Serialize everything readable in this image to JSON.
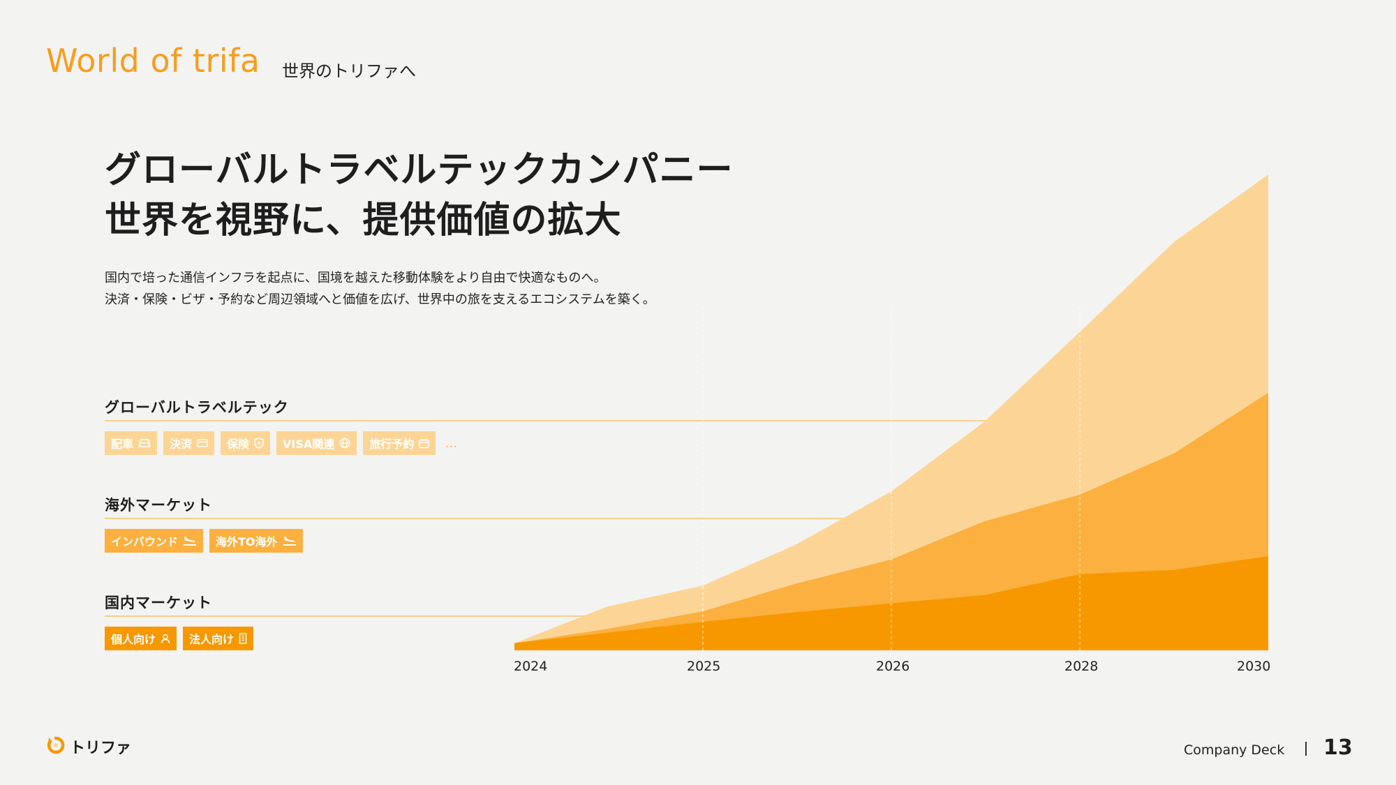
{
  "header": {
    "title_en": "World of trifa",
    "title_jp": "世界のトリファへ"
  },
  "headline": {
    "line1": "グローバルトラベルテックカンパニー",
    "line2": "世界を視野に、提供価値の拡大"
  },
  "description": {
    "line1": "国内で培った通信インフラを起点に、国境を越えた移動体験をより自由で快適なものへ。",
    "line2": "決済・保険・ビザ・予約など周辺領域へと価値を広げ、世界中の旅を支えるエコシステムを築く。"
  },
  "sections": {
    "global": {
      "title": "グローバルトラベルテック",
      "chips": [
        {
          "label": "配車",
          "icon": "car-icon"
        },
        {
          "label": "決済",
          "icon": "card-icon"
        },
        {
          "label": "保険",
          "icon": "shield-icon"
        },
        {
          "label": "VISA関連",
          "icon": "globe-icon"
        },
        {
          "label": "旅行予約",
          "icon": "calendar-icon"
        }
      ],
      "more": "…"
    },
    "overseas": {
      "title": "海外マーケット",
      "chips": [
        {
          "label": "インバウンド",
          "icon": "plane-landing-icon"
        },
        {
          "label": "海外TO海外",
          "icon": "plane-landing-icon"
        }
      ]
    },
    "domestic": {
      "title": "国内マーケット",
      "chips": [
        {
          "label": "個人向け",
          "icon": "person-icon"
        },
        {
          "label": "法人向け",
          "icon": "building-icon"
        }
      ]
    }
  },
  "chart_data": {
    "type": "area",
    "title": "",
    "xlabel": "",
    "ylabel": "",
    "x_ticks": [
      "2024",
      "2025",
      "2026",
      "2028",
      "2030"
    ],
    "x_tick_positions": [
      0,
      1,
      2,
      3,
      4
    ],
    "x": [
      0,
      0.5,
      1,
      1.5,
      2,
      2.5,
      3,
      3.5,
      4
    ],
    "ylim": [
      0,
      100
    ],
    "grid": "vertical dashed lines at ticks",
    "legend": "none",
    "series": [
      {
        "values": [
          1.5,
          3.7,
          6.0,
          8.0,
          9.9,
          11.6,
          16.0,
          16.9,
          19.8
        ],
        "color": "#f79800"
      },
      {
        "values": [
          1.5,
          4.5,
          8.2,
          14.0,
          19.1,
          27.1,
          32.7,
          41.4,
          54.1
        ],
        "color": "#fbb03f"
      },
      {
        "values": [
          1.5,
          9.2,
          13.6,
          22.2,
          33.4,
          48.0,
          66.9,
          85.8,
          100.0
        ],
        "color": "#fcd596"
      }
    ]
  },
  "colors": {
    "accent": "#f79d1e",
    "light": "#fcd596",
    "mid": "#fbb03f",
    "dark": "#f79800"
  },
  "footer": {
    "logo_text": "トリファ",
    "deck": "Company Deck",
    "page": "13"
  }
}
